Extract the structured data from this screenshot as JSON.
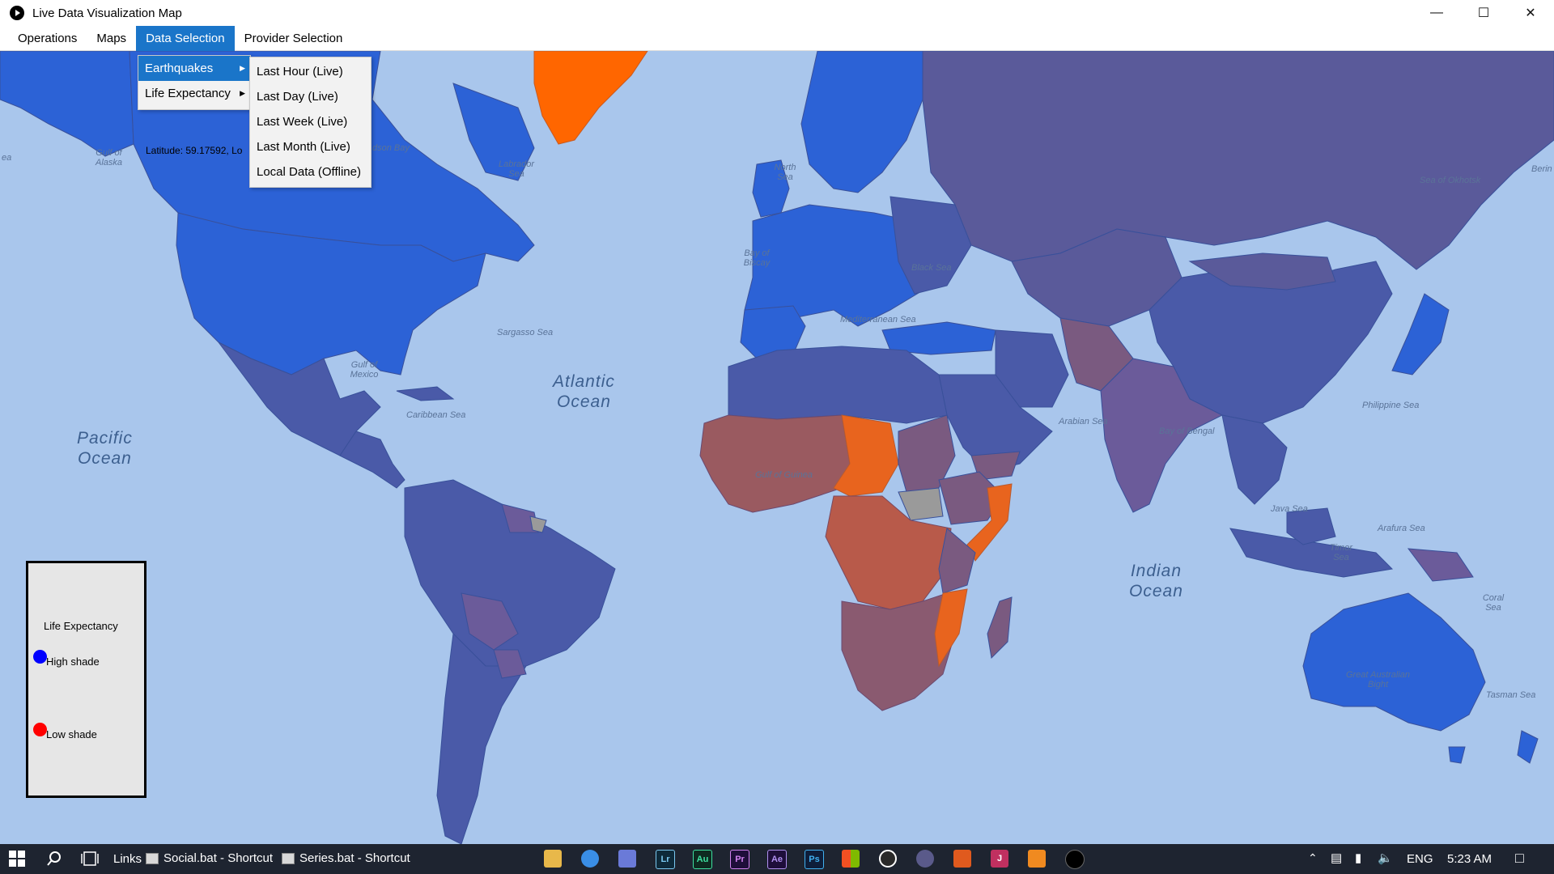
{
  "window": {
    "title": "Live Data Visualization Map"
  },
  "menubar": {
    "items": [
      {
        "label": "Operations"
      },
      {
        "label": "Maps"
      },
      {
        "label": "Data Selection"
      },
      {
        "label": "Provider Selection"
      }
    ]
  },
  "data_menu": {
    "items": [
      {
        "label": "Earthquakes"
      },
      {
        "label": "Life Expectancy"
      }
    ],
    "submenu": [
      {
        "label": "Last Hour (Live)"
      },
      {
        "label": "Last Day (Live)"
      },
      {
        "label": "Last Week (Live)"
      },
      {
        "label": "Last Month (Live)"
      },
      {
        "label": "Local Data (Offline)"
      }
    ]
  },
  "map": {
    "coordinates": "Latitude: 59.17592, Lo",
    "oceans": [
      {
        "line1": "Pacific",
        "line2": "Ocean"
      },
      {
        "line1": "Atlantic",
        "line2": "Ocean"
      },
      {
        "line1": "Indian",
        "line2": "Ocean"
      }
    ],
    "seas": [
      "Gulf of Alaska",
      "dson Bay",
      "Labrador Sea",
      "Sargasso Sea",
      "Gulf of Mexico",
      "Caribbean Sea",
      "North Sea",
      "Bay of Biscay",
      "Black Sea",
      "Mediterranean Sea",
      "Arabian Sea",
      "Bay of Bengal",
      "Philippine Sea",
      "Sea of Okhotsk",
      "Gulf of Guinea",
      "Java Sea",
      "Arafura Sea",
      "Timor Sea",
      "Coral Sea",
      "Great Australian Bight",
      "Tasman Sea",
      "ea",
      "Berin"
    ],
    "colors": {
      "ocean": "#a9c6ec",
      "high": "#2c62d6",
      "mid": "#4a5aa8",
      "low": "#e8641e",
      "nodata": "#9a9a9a"
    }
  },
  "legend": {
    "title": "Life Expectancy",
    "high_label": "High shade",
    "low_label": "Low shade",
    "high_color": "#0000ff",
    "low_color": "#ff0000"
  },
  "taskbar": {
    "links_label": "Links",
    "shortcuts": [
      {
        "label": "Social.bat - Shortcut"
      },
      {
        "label": "Series.bat - Shortcut"
      }
    ],
    "apps": [
      {
        "icon": "file-explorer-icon",
        "text": ""
      },
      {
        "icon": "firefox-icon",
        "text": ""
      },
      {
        "icon": "discord-icon",
        "text": ""
      },
      {
        "icon": "lightroom-icon",
        "text": "Lr"
      },
      {
        "icon": "audition-icon",
        "text": "Au"
      },
      {
        "icon": "premiere-icon",
        "text": "Pr"
      },
      {
        "icon": "after-effects-icon",
        "text": "Ae"
      },
      {
        "icon": "photoshop-icon",
        "text": "Ps"
      },
      {
        "icon": "store-icon",
        "text": ""
      },
      {
        "icon": "obs-icon",
        "text": ""
      },
      {
        "icon": "app-icon",
        "text": ""
      },
      {
        "icon": "matlab-icon",
        "text": ""
      },
      {
        "icon": "jetbrains-icon",
        "text": "J"
      },
      {
        "icon": "sublime-icon",
        "text": ""
      },
      {
        "icon": "live-map-app-icon",
        "text": ""
      }
    ],
    "language": "ENG",
    "time": "5:23 AM"
  }
}
